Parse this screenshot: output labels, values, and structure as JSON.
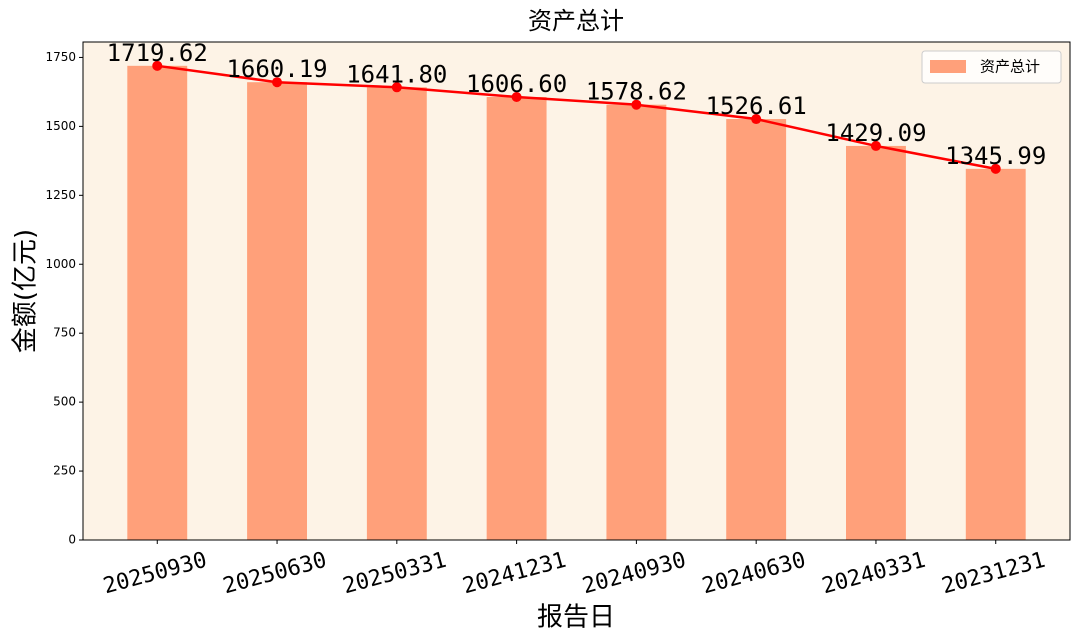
{
  "chart_data": {
    "type": "bar",
    "title": "资产总计",
    "x_label": "报告日",
    "y_label": "金额(亿元)",
    "categories": [
      "20250930",
      "20250630",
      "20250331",
      "20241231",
      "20240930",
      "20240630",
      "20240331",
      "20231231"
    ],
    "series": [
      {
        "name": "资产总计",
        "color": "#ffa07a",
        "values": [
          1719.62,
          1660.19,
          1641.8,
          1606.6,
          1578.62,
          1526.61,
          1429.09,
          1345.99
        ],
        "value_labels": [
          "1719.62",
          "1660.19",
          "1641.80",
          "1606.60",
          "1578.62",
          "1526.61",
          "1429.09",
          "1345.99"
        ]
      }
    ],
    "line_color": "#ff0000",
    "background": "#fdf3e6",
    "ylim": [
      0,
      1806
    ],
    "yticks": [
      0,
      250,
      500,
      750,
      1000,
      1250,
      1500,
      1750
    ],
    "legend": "upper right"
  }
}
